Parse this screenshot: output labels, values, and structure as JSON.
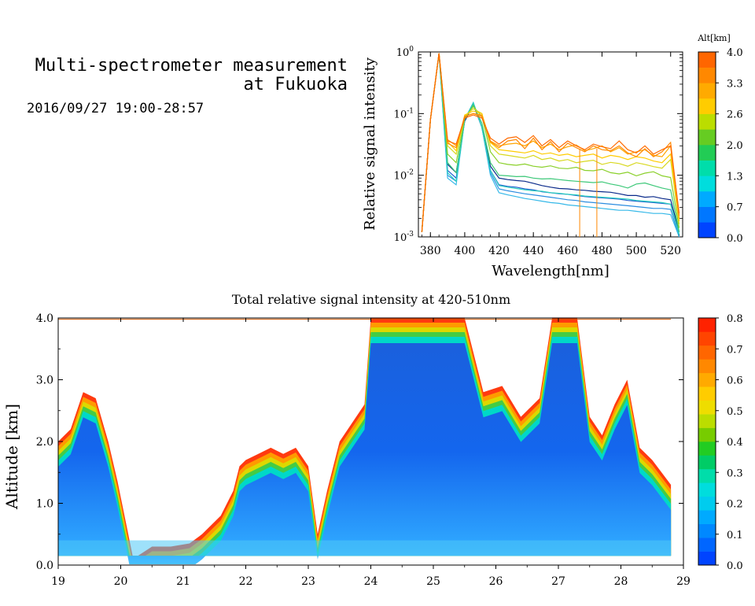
{
  "header": {
    "title_line1": "Multi-spectrometer measurement",
    "title_line2": "at Fukuoka",
    "date_range": "2016/09/27 19:00-28:57"
  },
  "chart_data": [
    {
      "type": "line",
      "xlabel": "Wavelength[nm]",
      "ylabel": "Relative signal intensity",
      "yscale": "log",
      "xlim": [
        373,
        527
      ],
      "ylim": [
        0.001,
        1
      ],
      "x_ticks": [
        "380",
        "400",
        "420",
        "440",
        "460",
        "480",
        "500",
        "520"
      ],
      "y_ticks": [
        {
          "base": "10",
          "exp": "0"
        },
        {
          "base": "10",
          "exp": "-1"
        },
        {
          "base": "10",
          "exp": "-2"
        },
        {
          "base": "10",
          "exp": "-3"
        }
      ],
      "colorbar": {
        "label": "Alt[km]",
        "ticks": [
          "4.0",
          "3.3",
          "2.6",
          "2.0",
          "1.3",
          "0.7",
          "0.0"
        ],
        "colors": [
          "#0044ff",
          "#0077ff",
          "#00aaff",
          "#00dddd",
          "#00ddaa",
          "#22cc55",
          "#66cc22",
          "#bbdd00",
          "#ffcc00",
          "#ffaa00",
          "#ff8800",
          "#ff6600"
        ]
      },
      "x": [
        375,
        380,
        385,
        390,
        395,
        400,
        405,
        410,
        415,
        420,
        425,
        430,
        435,
        440,
        445,
        450,
        455,
        460,
        465,
        470,
        475,
        480,
        485,
        490,
        495,
        500,
        505,
        510,
        515,
        520,
        525
      ],
      "series": [
        {
          "color": "#0a2a8a",
          "values": [
            0.0012,
            0.08,
            0.95,
            0.015,
            0.011,
            0.075,
            0.14,
            0.06,
            0.014,
            0.009,
            0.0085,
            0.0082,
            0.008,
            0.0074,
            0.0068,
            0.0064,
            0.0061,
            0.006,
            0.0058,
            0.0057,
            0.0055,
            0.0054,
            0.0053,
            0.005,
            0.0047,
            0.0047,
            0.0044,
            0.0045,
            0.0042,
            0.004,
            0.0012
          ]
        },
        {
          "color": "#1f5fcf",
          "values": [
            0.0012,
            0.08,
            0.95,
            0.012,
            0.009,
            0.08,
            0.15,
            0.06,
            0.012,
            0.007,
            0.0066,
            0.0064,
            0.006,
            0.0058,
            0.0054,
            0.0052,
            0.005,
            0.0049,
            0.0047,
            0.0045,
            0.0044,
            0.0043,
            0.0042,
            0.0041,
            0.0039,
            0.0038,
            0.0037,
            0.0036,
            0.0035,
            0.0034,
            0.0011
          ]
        },
        {
          "color": "#2a8ce0",
          "values": [
            0.0012,
            0.08,
            0.95,
            0.01,
            0.008,
            0.08,
            0.15,
            0.06,
            0.011,
            0.006,
            0.0056,
            0.0053,
            0.005,
            0.0048,
            0.0046,
            0.0044,
            0.0042,
            0.004,
            0.0039,
            0.0037,
            0.0036,
            0.0035,
            0.0034,
            0.0033,
            0.0032,
            0.0031,
            0.003,
            0.0029,
            0.0029,
            0.0028,
            0.001
          ]
        },
        {
          "color": "#35b8e8",
          "values": [
            0.0012,
            0.08,
            0.95,
            0.009,
            0.007,
            0.08,
            0.15,
            0.06,
            0.01,
            0.0052,
            0.0048,
            0.0045,
            0.0042,
            0.004,
            0.0038,
            0.0036,
            0.0035,
            0.0033,
            0.0032,
            0.0031,
            0.003,
            0.0029,
            0.0028,
            0.0027,
            0.0027,
            0.0026,
            0.0025,
            0.0024,
            0.0024,
            0.0023,
            0.001
          ]
        },
        {
          "color": "#2dd0c0",
          "values": [
            0.0012,
            0.08,
            0.95,
            0.011,
            0.008,
            0.08,
            0.15,
            0.06,
            0.012,
            0.0068,
            0.0064,
            0.0061,
            0.0058,
            0.0056,
            0.0055,
            0.0052,
            0.0051,
            0.0049,
            0.0048,
            0.0046,
            0.0045,
            0.0044,
            0.0043,
            0.0042,
            0.0041,
            0.0039,
            0.0038,
            0.0037,
            0.0036,
            0.0034,
            0.0011
          ]
        },
        {
          "color": "#3cc878",
          "values": [
            0.0012,
            0.08,
            0.95,
            0.016,
            0.011,
            0.08,
            0.14,
            0.07,
            0.016,
            0.01,
            0.0098,
            0.0095,
            0.0096,
            0.009,
            0.0087,
            0.0088,
            0.0085,
            0.0082,
            0.008,
            0.0078,
            0.0076,
            0.0078,
            0.0072,
            0.0068,
            0.0062,
            0.0072,
            0.0075,
            0.0068,
            0.0062,
            0.0058,
            0.0012
          ]
        },
        {
          "color": "#8ad02a",
          "values": [
            0.0012,
            0.08,
            0.95,
            0.022,
            0.016,
            0.085,
            0.13,
            0.09,
            0.024,
            0.016,
            0.015,
            0.0145,
            0.0152,
            0.014,
            0.0135,
            0.0142,
            0.013,
            0.0128,
            0.0135,
            0.012,
            0.0118,
            0.0125,
            0.011,
            0.0105,
            0.0112,
            0.0098,
            0.0108,
            0.0114,
            0.0098,
            0.0092,
            0.0014
          ]
        },
        {
          "color": "#d8d820",
          "values": [
            0.0012,
            0.08,
            0.95,
            0.03,
            0.022,
            0.09,
            0.12,
            0.1,
            0.03,
            0.022,
            0.021,
            0.02,
            0.019,
            0.021,
            0.018,
            0.019,
            0.017,
            0.018,
            0.016,
            0.0168,
            0.0175,
            0.015,
            0.0162,
            0.0155,
            0.014,
            0.016,
            0.015,
            0.0138,
            0.013,
            0.018,
            0.0016
          ]
        },
        {
          "color": "#ffcc00",
          "values": [
            0.0012,
            0.08,
            0.95,
            0.035,
            0.025,
            0.095,
            0.11,
            0.1,
            0.034,
            0.026,
            0.025,
            0.024,
            0.023,
            0.025,
            0.022,
            0.023,
            0.021,
            0.022,
            0.02,
            0.021,
            0.022,
            0.019,
            0.021,
            0.02,
            0.018,
            0.02,
            0.019,
            0.017,
            0.016,
            0.022,
            0.0018
          ]
        },
        {
          "color": "#ffa500",
          "values": [
            0.0012,
            0.08,
            0.95,
            0.038,
            0.03,
            0.09,
            0.1,
            0.095,
            0.036,
            0.03,
            0.032,
            0.033,
            0.03,
            0.036,
            0.028,
            0.032,
            0.026,
            0.029,
            0.031,
            0.025,
            0.027,
            0.03,
            0.024,
            0.028,
            0.022,
            0.024,
            0.026,
            0.021,
            0.02,
            0.03,
            0.002
          ]
        },
        {
          "color": "#ff8800",
          "values": [
            0.0012,
            0.08,
            0.95,
            0.033,
            0.028,
            0.09,
            0.1,
            0.09,
            0.035,
            0.028,
            0.036,
            0.038,
            0.027,
            0.04,
            0.026,
            0.035,
            0.024,
            0.033,
            0.028,
            0.024,
            0.03,
            0.026,
            0.025,
            0.03,
            0.023,
            0.02,
            0.027,
            0.02,
            0.024,
            0.034,
            0.0022
          ]
        },
        {
          "color": "#ff6a00",
          "values": [
            0.0012,
            0.08,
            0.95,
            0.036,
            0.032,
            0.085,
            0.095,
            0.085,
            0.04,
            0.032,
            0.04,
            0.042,
            0.034,
            0.044,
            0.03,
            0.038,
            0.028,
            0.036,
            0.03,
            0.026,
            0.032,
            0.029,
            0.027,
            0.036,
            0.026,
            0.023,
            0.03,
            0.022,
            0.026,
            0.03,
            0.0024
          ]
        }
      ],
      "vertical_spikes_nm": [
        467,
        477
      ]
    },
    {
      "type": "heatmap",
      "title": "Total relative signal intensity at 420-510nm",
      "ylabel": "Altitude [km]",
      "xlim": [
        19,
        29
      ],
      "ylim": [
        0,
        4
      ],
      "x_ticks": [
        "19",
        "20",
        "21",
        "22",
        "23",
        "24",
        "25",
        "26",
        "27",
        "28",
        "29"
      ],
      "y_ticks": [
        "0.0",
        "1.0",
        "2.0",
        "3.0",
        "4.0"
      ],
      "colorbar": {
        "ticks": [
          "0.8",
          "0.7",
          "0.6",
          "0.5",
          "0.4",
          "0.3",
          "0.2",
          "0.1",
          "0.0"
        ],
        "colors": [
          "#0044ff",
          "#0066ff",
          "#0088ff",
          "#00aaff",
          "#00ccee",
          "#00dddd",
          "#00ddaa",
          "#00cc66",
          "#22cc22",
          "#77cc00",
          "#bbdd00",
          "#eedd00",
          "#ffcc00",
          "#ffaa00",
          "#ff8800",
          "#ff6600",
          "#ff4400",
          "#ff2200"
        ]
      },
      "cloud_base_profile": {
        "time": [
          19.0,
          19.2,
          19.4,
          19.6,
          19.8,
          19.95,
          20.1,
          20.2,
          20.5,
          20.8,
          21.1,
          21.3,
          21.6,
          21.8,
          21.9,
          22.0,
          22.2,
          22.4,
          22.6,
          22.8,
          23.0,
          23.15,
          23.3,
          23.5,
          23.7,
          23.9,
          24.0,
          24.3,
          24.6,
          24.9,
          25.2,
          25.5,
          25.8,
          26.1,
          26.4,
          26.7,
          26.9,
          27.1,
          27.3,
          27.5,
          27.7,
          27.9,
          28.1,
          28.3,
          28.5,
          28.8
        ],
        "top_km": [
          2.0,
          2.2,
          2.8,
          2.7,
          2.0,
          1.35,
          0.6,
          0.1,
          0.3,
          0.3,
          0.35,
          0.5,
          0.8,
          1.2,
          1.6,
          1.7,
          1.8,
          1.9,
          1.8,
          1.9,
          1.6,
          0.5,
          1.2,
          2.0,
          2.3,
          2.6,
          4.0,
          4.0,
          4.0,
          4.0,
          4.0,
          4.0,
          2.8,
          2.9,
          2.4,
          2.7,
          4.0,
          4.0,
          4.0,
          2.4,
          2.1,
          2.6,
          3.0,
          1.9,
          1.7,
          1.3
        ]
      }
    }
  ]
}
